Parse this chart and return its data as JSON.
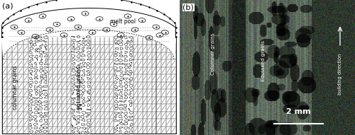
{
  "fig_width": 5.0,
  "fig_height": 1.91,
  "dpi": 100,
  "bg_color": "#ffffff",
  "panel_a_label": "(a)",
  "panel_b_label": "(b)",
  "label_melt_pool": "melt pool",
  "label_columnar": "columnar grains",
  "label_equiaxed": "equiaxed grains",
  "label_columnar_b": "Columnar grains",
  "label_equiaxed_b": "Equiaxed grains",
  "label_building": "building direction",
  "label_scale": "2 mm",
  "schematic_bg": "#ffffff",
  "micro_bg_dark": [
    0.22,
    0.27,
    0.22
  ],
  "micro_bg_mid": [
    0.35,
    0.4,
    0.35
  ],
  "micro_bg_light": [
    0.48,
    0.53,
    0.46
  ]
}
